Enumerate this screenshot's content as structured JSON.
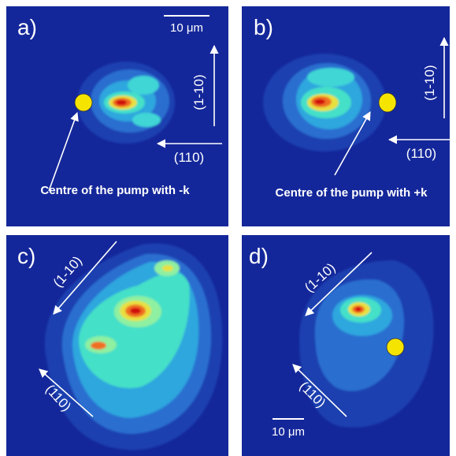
{
  "panels": [
    {
      "label": "a)",
      "scale_bar": "10 μm",
      "axis_vertical": "(1-10)",
      "axis_horizontal": "(110)",
      "caption": "Centre of the pump with -k"
    },
    {
      "label": "b)",
      "axis_vertical": "(1-10)",
      "axis_horizontal": "(110)",
      "caption": "Centre of the pump with +k"
    },
    {
      "label": "c)",
      "axis_upper": "(1-10)",
      "axis_lower": "(110)"
    },
    {
      "label": "d)",
      "axis_upper": "(1-10)",
      "axis_lower": "(110)",
      "scale_bar": "10 μm"
    }
  ]
}
